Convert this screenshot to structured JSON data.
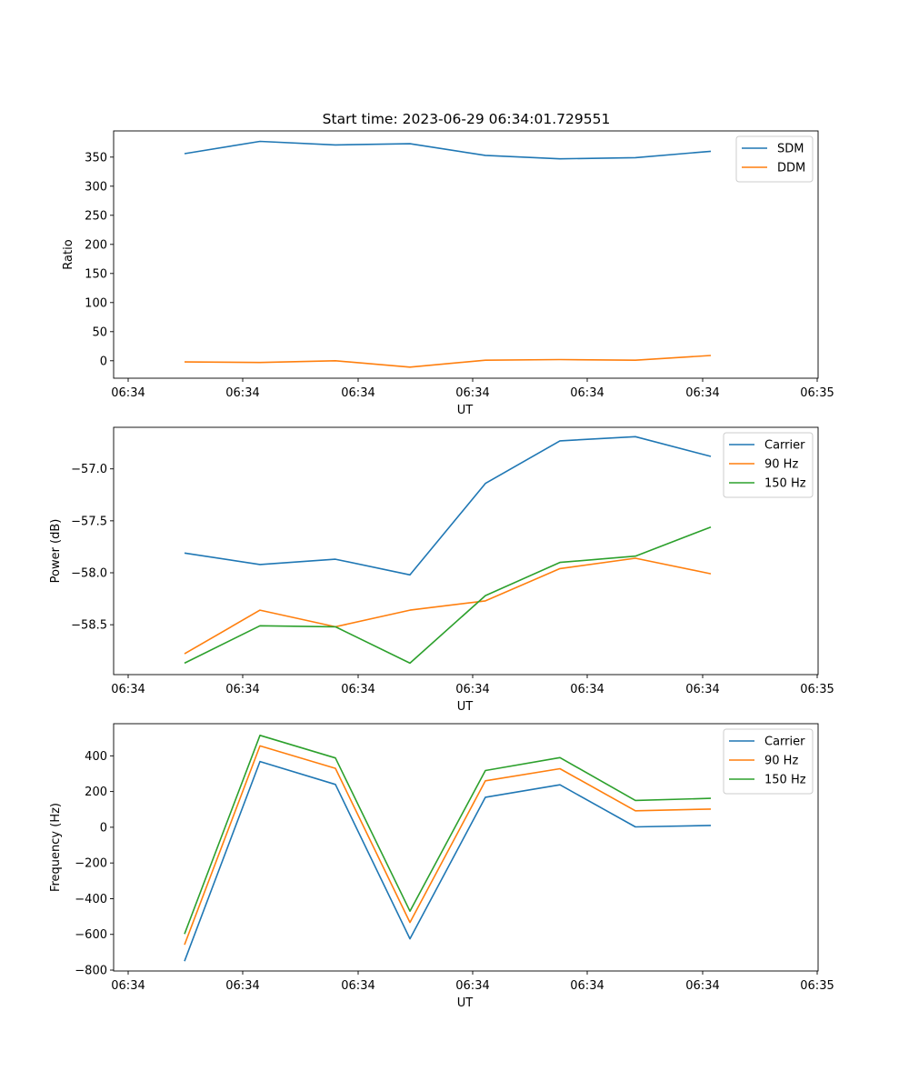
{
  "figure": {
    "title": "Start time: 2023-06-29 06:34:01.729551"
  },
  "chart_data": [
    {
      "type": "line",
      "xlabel": "UT",
      "ylabel": "Ratio",
      "x_ticks": [
        "06:34",
        "06:34",
        "06:34",
        "06:34",
        "06:34",
        "06:34",
        "06:35"
      ],
      "y_ticks": [
        0,
        50,
        100,
        150,
        200,
        250,
        300,
        350
      ],
      "ylim": [
        -30,
        395
      ],
      "grid": false,
      "legend": "top-right",
      "series": [
        {
          "name": "SDM",
          "color": "#1f77b4",
          "values": [
            356,
            377,
            371,
            373,
            353,
            347,
            349,
            360
          ]
        },
        {
          "name": "DDM",
          "color": "#ff7f0e",
          "values": [
            -2,
            -3,
            0,
            -11,
            1,
            2,
            1,
            9
          ]
        }
      ]
    },
    {
      "type": "line",
      "xlabel": "UT",
      "ylabel": "Power (dB)",
      "x_ticks": [
        "06:34",
        "06:34",
        "06:34",
        "06:34",
        "06:34",
        "06:34",
        "06:35"
      ],
      "y_ticks": [
        -58.5,
        -58.0,
        -57.5,
        -57.0
      ],
      "y_tick_labels": [
        "−58.5",
        "−58.0",
        "−57.5",
        "−57.0"
      ],
      "ylim": [
        -58.98,
        -56.6
      ],
      "grid": false,
      "legend": "top-right",
      "series": [
        {
          "name": "Carrier",
          "color": "#1f77b4",
          "values": [
            -57.81,
            -57.92,
            -57.87,
            -58.02,
            -57.14,
            -56.73,
            -56.69,
            -56.88
          ]
        },
        {
          "name": "90 Hz",
          "color": "#ff7f0e",
          "values": [
            -58.78,
            -58.36,
            -58.52,
            -58.36,
            -58.27,
            -57.96,
            -57.86,
            -58.01
          ]
        },
        {
          "name": "150 Hz",
          "color": "#2ca02c",
          "values": [
            -58.87,
            -58.51,
            -58.52,
            -58.87,
            -58.22,
            -57.9,
            -57.84,
            -57.56
          ]
        }
      ]
    },
    {
      "type": "line",
      "xlabel": "UT",
      "ylabel": "Frequency (Hz)",
      "x_ticks": [
        "06:34",
        "06:34",
        "06:34",
        "06:34",
        "06:34",
        "06:34",
        "06:35"
      ],
      "y_ticks": [
        -800,
        -600,
        -400,
        -200,
        0,
        200,
        400
      ],
      "y_tick_labels": [
        "−800",
        "−600",
        "−400",
        "−200",
        "0",
        "200",
        "400"
      ],
      "ylim": [
        -805,
        580
      ],
      "grid": false,
      "legend": "top-right",
      "series": [
        {
          "name": "Carrier",
          "color": "#1f77b4",
          "values": [
            -750,
            368,
            240,
            -625,
            168,
            238,
            2,
            10
          ]
        },
        {
          "name": "90 Hz",
          "color": "#ff7f0e",
          "values": [
            -658,
            456,
            330,
            -533,
            260,
            328,
            92,
            102
          ]
        },
        {
          "name": "150 Hz",
          "color": "#2ca02c",
          "values": [
            -598,
            515,
            388,
            -470,
            318,
            390,
            150,
            162
          ]
        }
      ]
    }
  ]
}
